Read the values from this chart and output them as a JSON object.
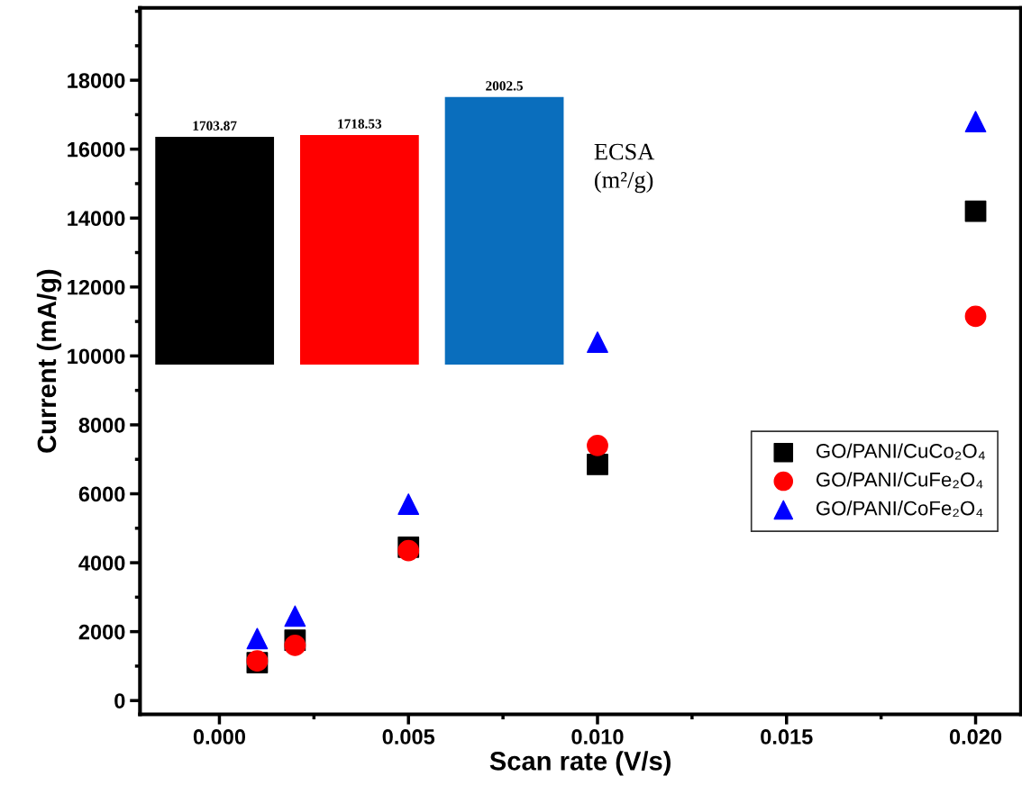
{
  "chart_data": [
    {
      "type": "scatter",
      "xlabel": "Scan rate (V/s)",
      "ylabel": "Current (mA/g)",
      "x": [
        0.001,
        0.002,
        0.005,
        0.01,
        0.02
      ],
      "series": [
        {
          "name": "GO/PANI/CuCo₂O₄",
          "color": "#000000",
          "marker": "square",
          "values": [
            1100,
            1750,
            4450,
            6850,
            14200
          ]
        },
        {
          "name": "GO/PANI/CuFe₂O₄",
          "color": "#ff0000",
          "marker": "circle",
          "values": [
            1150,
            1600,
            4350,
            7400,
            11150
          ]
        },
        {
          "name": "GO/PANI/CoFe₂O₄",
          "color": "#0000ff",
          "marker": "triangle",
          "values": [
            1800,
            2450,
            5700,
            10400,
            16800
          ]
        }
      ],
      "xlim": [
        -0.0021,
        0.0212
      ],
      "ylim": [
        -400,
        20100
      ],
      "xticks": [
        {
          "value": 0,
          "label": "0.000"
        },
        {
          "value": 0.005,
          "label": "0.005"
        },
        {
          "value": 0.01,
          "label": "0.010"
        },
        {
          "value": 0.015,
          "label": "0.015"
        },
        {
          "value": 0.02,
          "label": "0.020"
        }
      ],
      "yticks": [
        0,
        2000,
        4000,
        6000,
        8000,
        10000,
        12000,
        14000,
        16000,
        18000
      ],
      "grid": false,
      "legend": "bottom right"
    },
    {
      "type": "bar",
      "categories": [
        null,
        null,
        null
      ],
      "values": [
        1703.87,
        1718.53,
        2002.5
      ],
      "colors": [
        "#000000",
        "#ff0000",
        "#0a6ebd"
      ],
      "value_labels": [
        "1703.87",
        "1718.53",
        "2002.5"
      ],
      "tick_labels": false,
      "annotations": [
        "ECSA\n(m²/g)"
      ]
    }
  ]
}
